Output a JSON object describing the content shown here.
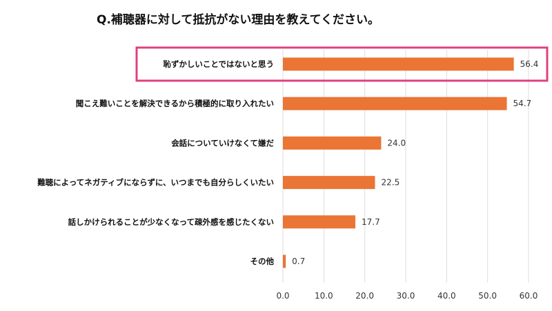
{
  "chart_data": {
    "type": "bar",
    "orientation": "horizontal",
    "title": "Q.補聴器に対して抵抗がない理由を教えてください。",
    "categories": [
      "恥ずかしいことではないと思う",
      "聞こえ難いことを解決できるから積極的に取り入れたい",
      "会話についていけなくて嫌だ",
      "難聴によってネガティブにならずに、いつまでも自分らしくいたい",
      "話しかけられることが少なくなって疎外感を感じたくない",
      "その他"
    ],
    "values": [
      56.4,
      54.7,
      24.0,
      22.5,
      17.7,
      0.7
    ],
    "value_labels": [
      "56.4",
      "54.7",
      "24.0",
      "22.5",
      "17.7",
      "0.7"
    ],
    "xlim": [
      0,
      60
    ],
    "x_ticks": [
      "0.0",
      "10.0",
      "20.0",
      "30.0",
      "40.0",
      "50.0",
      "60.0"
    ],
    "grid": true,
    "highlighted_category_index": 0,
    "colors": {
      "bar": "#ea7534",
      "highlight": "#e0407f",
      "grid": "#dcdcdc"
    }
  }
}
